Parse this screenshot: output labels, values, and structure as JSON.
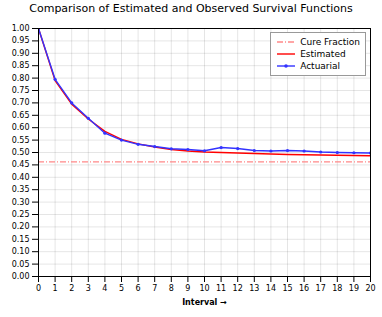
{
  "chart_data": {
    "type": "line",
    "title": "Comparison of Estimated and Observed Survival Functions",
    "xlabel": "Interval",
    "xlim": [
      0,
      20
    ],
    "ylim": [
      0,
      1.0
    ],
    "xticks": [
      0,
      1,
      2,
      3,
      4,
      5,
      6,
      7,
      8,
      9,
      10,
      11,
      12,
      13,
      14,
      15,
      16,
      17,
      18,
      19,
      20
    ],
    "yticks": [
      {
        "value": 0,
        "label": "0.00"
      },
      0.05,
      {
        "value": 0.1,
        "label": "0.10"
      },
      0.15,
      {
        "value": 0.2,
        "label": "0.20"
      },
      0.25,
      {
        "value": 0.3,
        "label": "0.30"
      },
      0.35,
      {
        "value": 0.4,
        "label": "0.40"
      },
      0.45,
      {
        "value": 0.5,
        "label": "0.50"
      },
      0.55,
      {
        "value": 0.6,
        "label": "0.60"
      },
      0.65,
      {
        "value": 0.7,
        "label": "0.70"
      },
      0.75,
      {
        "value": 0.8,
        "label": "0.80"
      },
      0.85,
      {
        "value": 0.9,
        "label": "0.90"
      },
      0.95,
      {
        "value": 1.0,
        "label": "1.00"
      }
    ],
    "x": [
      0,
      1,
      2,
      3,
      4,
      5,
      6,
      7,
      8,
      9,
      10,
      11,
      12,
      13,
      14,
      15,
      16,
      17,
      18,
      19,
      20
    ],
    "series": [
      {
        "name": "Cure Fraction",
        "type": "hline",
        "color": "#ff8888",
        "line_style": "dashdot",
        "value": 0.462
      },
      {
        "name": "Estimated",
        "color": "#ff0000",
        "line_style": "solid",
        "values": [
          1.0,
          0.79,
          0.695,
          0.635,
          0.585,
          0.553,
          0.535,
          0.522,
          0.512,
          0.506,
          0.502,
          0.5,
          0.498,
          0.496,
          0.494,
          0.492,
          0.491,
          0.49,
          0.489,
          0.488,
          0.487
        ]
      },
      {
        "name": "Actuarial",
        "color": "#3333ff",
        "line_style": "solid",
        "marker": "dot",
        "values": [
          1.0,
          0.795,
          0.7,
          0.638,
          0.578,
          0.55,
          0.533,
          0.524,
          0.515,
          0.512,
          0.507,
          0.52,
          0.516,
          0.508,
          0.506,
          0.508,
          0.506,
          0.502,
          0.5,
          0.499,
          0.498
        ]
      }
    ],
    "grid": true,
    "legend": "upper right"
  }
}
